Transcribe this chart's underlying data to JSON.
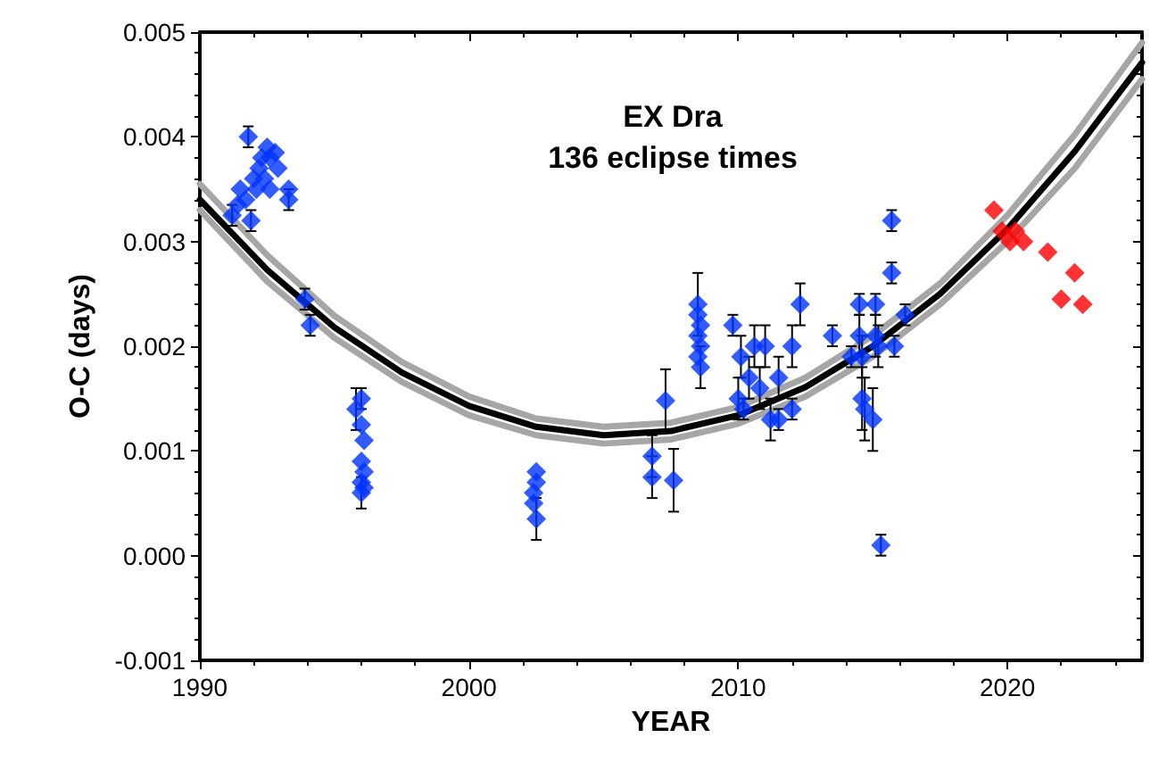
{
  "chart_data": {
    "type": "scatter",
    "title": "EX Dra",
    "subtitle": "136 eclipse times",
    "xlabel": "YEAR",
    "ylabel": "O-C (days)",
    "xlim": [
      1990,
      2025
    ],
    "xticks": [
      1990,
      2000,
      2010,
      2020
    ],
    "ylim": [
      -0.001,
      0.005
    ],
    "yticks": [
      -0.001,
      {
        "value": 0,
        "label": "0.000"
      },
      0.001,
      0.002,
      0.003,
      0.004,
      0.005
    ],
    "grid": false,
    "series": [
      {
        "type": "line",
        "color": "#a6a6a6",
        "marker": "none",
        "line_style": "solid",
        "x": [
          1990,
          1992.5,
          1995,
          1997.5,
          2000,
          2002.5,
          2005,
          2007.5,
          2010,
          2012.5,
          2015,
          2017.5,
          2020,
          2022.5,
          2025
        ],
        "values": [
          0.00355,
          0.00287,
          0.00229,
          0.00185,
          0.00152,
          0.00131,
          0.00123,
          0.00127,
          0.00142,
          0.0017,
          0.0021,
          0.0026,
          0.00325,
          0.00402,
          0.0049
        ]
      },
      {
        "type": "line",
        "color": "#a6a6a6",
        "marker": "none",
        "line_style": "solid",
        "x": [
          1990,
          1992.5,
          1995,
          1997.5,
          2000,
          2002.5,
          2005,
          2007.5,
          2010,
          2012.5,
          2015,
          2017.5,
          2020,
          2022.5,
          2025
        ],
        "values": [
          0.0033,
          0.00262,
          0.00208,
          0.00166,
          0.00134,
          0.00115,
          0.00107,
          0.00111,
          0.00126,
          0.00152,
          0.0019,
          0.0024,
          0.003,
          0.0037,
          0.00455
        ]
      },
      {
        "type": "line",
        "color": "#000000",
        "marker": "none",
        "line_style": "solid",
        "x": [
          1990,
          1992.5,
          1995,
          1997.5,
          2000,
          2002.5,
          2005,
          2007.5,
          2010,
          2012.5,
          2015,
          2017.5,
          2020,
          2022.5,
          2025
        ],
        "values": [
          0.0034,
          0.00273,
          0.00218,
          0.00175,
          0.00143,
          0.00123,
          0.00115,
          0.00119,
          0.00134,
          0.00161,
          0.002,
          0.0025,
          0.00312,
          0.00386,
          0.00471
        ]
      },
      {
        "type": "scatter",
        "color": "#0033ff",
        "marker": "diamond",
        "x": [
          1991.2,
          1991.4,
          1991.5,
          1991.7,
          1991.8,
          1991.9,
          1992.0,
          1992.1,
          1992.2,
          1992.3,
          1992.4,
          1992.5,
          1992.6,
          1992.8,
          1992.9,
          1992.6,
          1993.3,
          1993.3,
          1993.9,
          1994.1,
          1995.8,
          1996.0,
          1996.0,
          1996.1,
          1996.0,
          1996.1,
          1996.0,
          1996.1,
          1996.0,
          2002.5,
          2002.5,
          2002.4,
          2002.4,
          2002.5,
          2006.8,
          2006.8,
          2007.3,
          2007.6,
          2008.5,
          2008.5,
          2008.6,
          2008.5,
          2008.6,
          2008.5,
          2008.6,
          2009.8,
          2010.0,
          2010.1,
          2010.2,
          2010.4,
          2010.6,
          2010.8,
          2011.0,
          2011.2,
          2011.5,
          2011.5,
          2012.0,
          2012.0,
          2012.3,
          2013.5,
          2014.2,
          2014.5,
          2014.5,
          2014.6,
          2014.6,
          2014.7,
          2015.1,
          2015.1,
          2015.0,
          2015.2,
          2015.3,
          2015.7,
          2015.7,
          2015.8,
          2016.2
        ],
        "values": [
          0.00325,
          0.00335,
          0.0035,
          0.0034,
          0.004,
          0.0032,
          0.0036,
          0.0035,
          0.0037,
          0.0038,
          0.0036,
          0.0039,
          0.0038,
          0.00385,
          0.0037,
          0.0035,
          0.0035,
          0.0034,
          0.00245,
          0.0022,
          0.0014,
          0.0015,
          0.00125,
          0.0011,
          0.0009,
          0.0008,
          0.0007,
          0.00065,
          0.0006,
          0.0008,
          0.0007,
          0.0006,
          0.0005,
          0.00035,
          0.00095,
          0.00075,
          0.00148,
          0.00072,
          0.0024,
          0.0023,
          0.0022,
          0.0021,
          0.002,
          0.0019,
          0.0018,
          0.0022,
          0.0015,
          0.0019,
          0.0014,
          0.0017,
          0.002,
          0.0016,
          0.002,
          0.0013,
          0.0017,
          0.0013,
          0.002,
          0.0014,
          0.0024,
          0.0021,
          0.0019,
          0.0024,
          0.0021,
          0.0019,
          0.0015,
          0.0014,
          0.0024,
          0.0021,
          0.0013,
          0.002,
          0.0001,
          0.0032,
          0.0027,
          0.002,
          0.0023
        ],
        "errors": [
          0.0001,
          null,
          null,
          null,
          0.0001,
          0.0001,
          null,
          null,
          null,
          null,
          null,
          null,
          null,
          null,
          null,
          null,
          null,
          0.0001,
          0.0001,
          0.0001,
          0.0002,
          0.0001,
          null,
          null,
          null,
          null,
          null,
          null,
          0.00015,
          null,
          null,
          null,
          null,
          0.0002,
          0.0002,
          0.0002,
          0.0003,
          0.0003,
          0.0003,
          null,
          null,
          null,
          null,
          null,
          0.0002,
          0.0001,
          0.0002,
          0.0002,
          0.0001,
          0.0002,
          0.0002,
          0.0002,
          0.0002,
          0.0002,
          0.0002,
          0.0001,
          0.0002,
          0.0001,
          0.0002,
          0.0001,
          0.0001,
          0.0001,
          0.0002,
          0.0002,
          0.0003,
          0.0003,
          0.0001,
          0.0002,
          0.0003,
          0.0002,
          0.0001,
          0.0001,
          0.0001,
          0.0001,
          0.0001
        ]
      },
      {
        "type": "scatter",
        "color": "#ff0000",
        "marker": "diamond",
        "x": [
          2019.5,
          2019.8,
          2020.1,
          2020.3,
          2020.6,
          2021.5,
          2022.0,
          2022.5,
          2022.8
        ],
        "values": [
          0.0033,
          0.0031,
          0.003,
          0.0031,
          0.003,
          0.0029,
          0.00245,
          0.0027,
          0.0024
        ]
      }
    ]
  }
}
